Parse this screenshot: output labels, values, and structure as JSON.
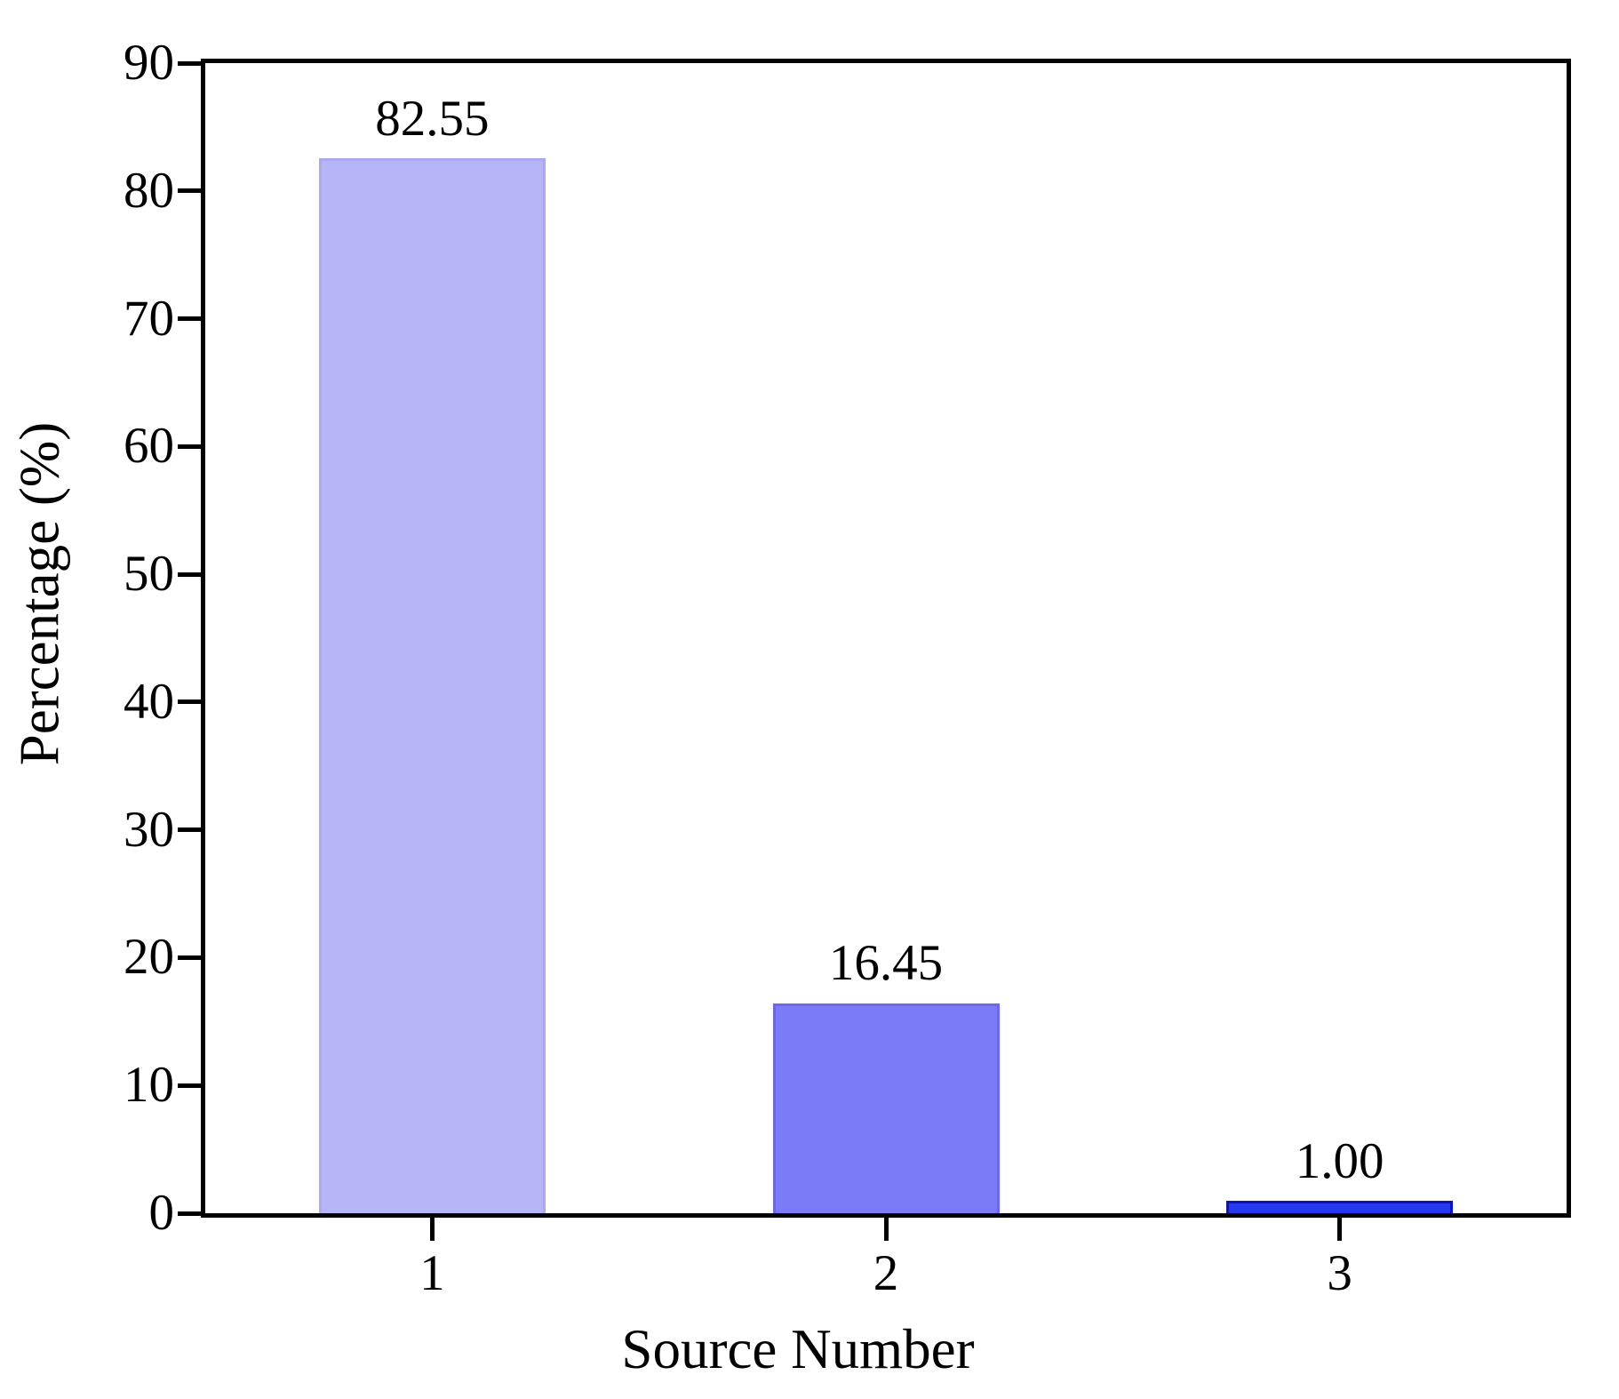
{
  "chart_data": {
    "type": "bar",
    "categories": [
      "1",
      "2",
      "3"
    ],
    "values": [
      82.55,
      16.45,
      1.0
    ],
    "value_labels": [
      "82.55",
      "16.45",
      "1.00"
    ],
    "title": "",
    "xlabel": "Source Number",
    "ylabel": "Percentage (%)",
    "ylim": [
      0,
      90
    ],
    "yticks": [
      0,
      10,
      20,
      30,
      40,
      50,
      60,
      70,
      80,
      90
    ],
    "grid": false,
    "legend": false,
    "frame": "full-box",
    "tick_direction": "out",
    "bar_fill_colors": [
      "#b5b5f8",
      "#7b7bf8",
      "#2638f0"
    ],
    "bar_border_colors": [
      "#aaaaf0",
      "#6868e8",
      "#0d14b0"
    ],
    "axis_color": "#000000",
    "text_color": "#000000",
    "background_color": "#ffffff"
  }
}
